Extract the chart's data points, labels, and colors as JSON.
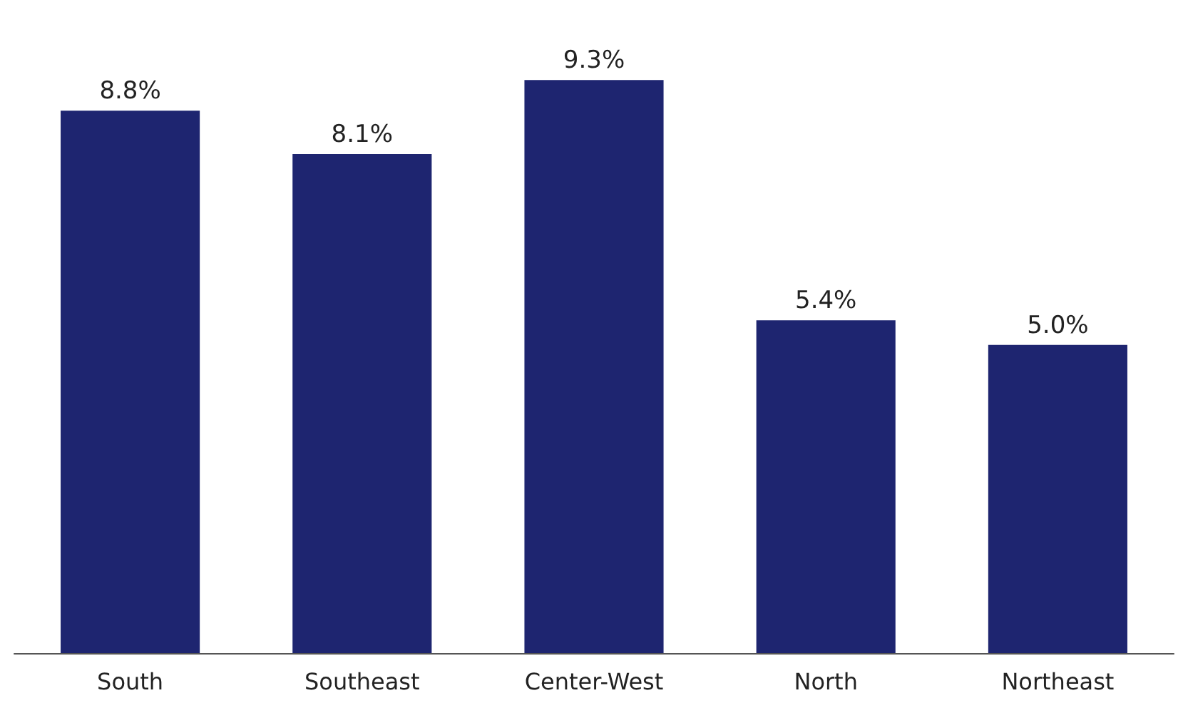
{
  "chart_data": {
    "type": "bar",
    "categories": [
      "South",
      "Southeast",
      "Center-West",
      "North",
      "Northeast"
    ],
    "values": [
      8.8,
      8.1,
      9.3,
      5.4,
      5.0
    ],
    "color": "#1e2570",
    "value_labels": [
      "8.8%",
      "8.1%",
      "9.3%",
      "5.4%",
      "5.0%"
    ]
  }
}
